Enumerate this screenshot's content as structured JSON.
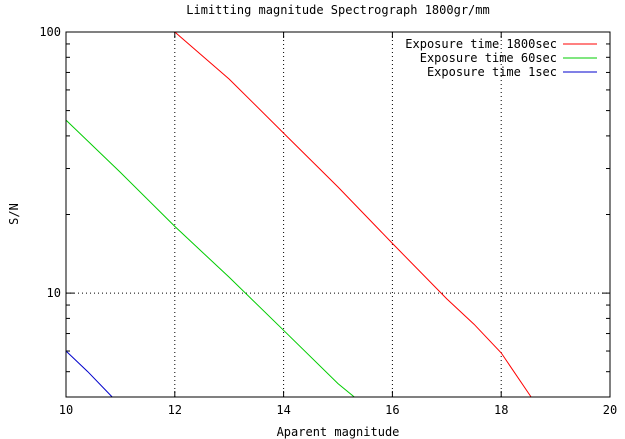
{
  "chart_data": {
    "type": "line",
    "title": "Limitting magnitude  Spectrograph 1800gr/mm",
    "xlabel": "Aparent magnitude",
    "ylabel": "S/N",
    "xlim": [
      10,
      20
    ],
    "ylim": [
      4,
      100
    ],
    "yscale": "log",
    "grid": true,
    "legend_position": "top-right",
    "x_ticks": [
      10,
      12,
      14,
      16,
      18,
      20
    ],
    "x_tick_labels": [
      "10",
      "12",
      "14",
      "16",
      "18",
      "20"
    ],
    "y_ticks": [
      10,
      100
    ],
    "y_tick_labels": [
      "10",
      "100"
    ],
    "series": [
      {
        "name": "Exposure time 1800sec",
        "color": "#ff0000",
        "points": [
          [
            12.0,
            100
          ],
          [
            13.0,
            66
          ],
          [
            14.0,
            41
          ],
          [
            15.0,
            25.5
          ],
          [
            16.0,
            15.5
          ],
          [
            17.0,
            9.5
          ],
          [
            17.5,
            7.6
          ],
          [
            18.0,
            5.9
          ],
          [
            18.55,
            4.0
          ]
        ]
      },
      {
        "name": "Exposure time 60sec",
        "color": "#00cc00",
        "points": [
          [
            10.0,
            46
          ],
          [
            11.0,
            29
          ],
          [
            12.0,
            18
          ],
          [
            13.0,
            11.5
          ],
          [
            14.0,
            7.2
          ],
          [
            15.0,
            4.5
          ],
          [
            15.3,
            4.0
          ]
        ]
      },
      {
        "name": "Exposure time 1sec",
        "color": "#0000cc",
        "points": [
          [
            10.0,
            6.0
          ],
          [
            10.4,
            5.0
          ],
          [
            10.85,
            4.0
          ]
        ]
      }
    ]
  }
}
